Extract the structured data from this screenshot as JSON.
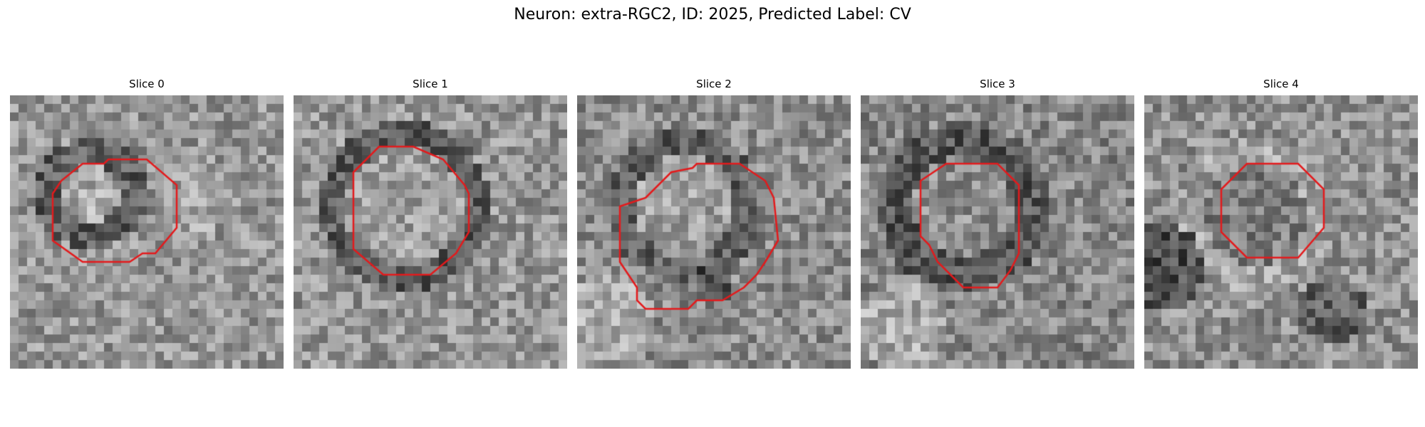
{
  "figure": {
    "title": "Neuron: extra-RGC2, ID: 2025, Predicted Label: CV"
  },
  "panels": [
    {
      "title": "Slice 0"
    },
    {
      "title": "Slice 1"
    },
    {
      "title": "Slice 2"
    },
    {
      "title": "Slice 3"
    },
    {
      "title": "Slice 4"
    }
  ],
  "colors": {
    "contour": "#e31a1c",
    "background": "#ffffff"
  }
}
